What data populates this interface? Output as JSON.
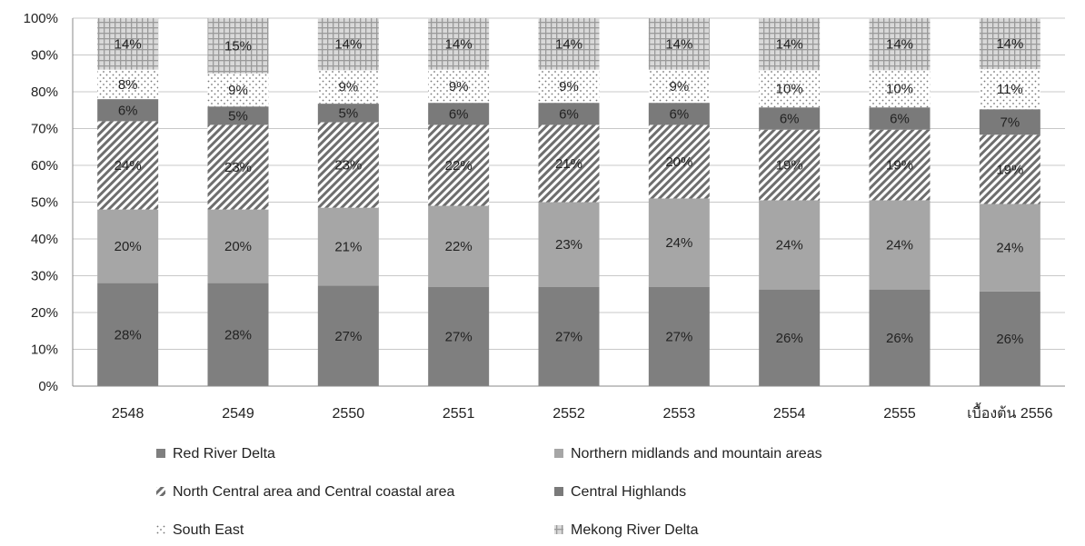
{
  "chart_data": {
    "type": "bar",
    "stacked": true,
    "normalized_percent": true,
    "categories": [
      "2548",
      "2549",
      "2550",
      "2551",
      "2552",
      "2553",
      "2554",
      "2555",
      "เบื้องต้น 2556"
    ],
    "series": [
      {
        "name": "Red River Delta",
        "values": [
          28,
          28,
          27,
          27,
          27,
          27,
          26,
          26,
          26
        ],
        "color": "#7f7f7f",
        "pattern": "solid"
      },
      {
        "name": "Northern midlands  and mountain  areas",
        "values": [
          20,
          20,
          21,
          22,
          23,
          24,
          24,
          24,
          24
        ],
        "color": "#a6a6a6",
        "pattern": "solid"
      },
      {
        "name": "North Central area and Central coastal area",
        "values": [
          24,
          23,
          23,
          22,
          21,
          20,
          19,
          19,
          19
        ],
        "color": "#808080",
        "pattern": "diagonal-hatch"
      },
      {
        "name": "Central Highlands",
        "values": [
          6,
          5,
          5,
          6,
          6,
          6,
          6,
          6,
          7
        ],
        "color": "#7a7a7a",
        "pattern": "solid"
      },
      {
        "name": "South East",
        "values": [
          8,
          9,
          9,
          9,
          9,
          9,
          10,
          10,
          11
        ],
        "color": "#9a9a9a",
        "pattern": "dots"
      },
      {
        "name": "Mekong River Delta",
        "values": [
          14,
          15,
          14,
          14,
          14,
          14,
          14,
          14,
          14
        ],
        "color": "#c8c8c8",
        "pattern": "grid"
      }
    ],
    "y_ticks": [
      "0%",
      "10%",
      "20%",
      "30%",
      "40%",
      "50%",
      "60%",
      "70%",
      "80%",
      "90%",
      "100%"
    ],
    "ylim": [
      0,
      100
    ],
    "grid": true,
    "legend_position": "bottom",
    "title": "",
    "xlabel": "",
    "ylabel": ""
  }
}
